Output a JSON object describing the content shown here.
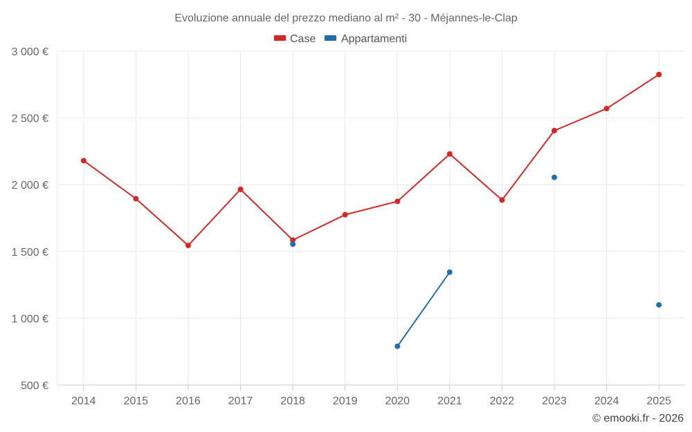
{
  "chart_data": {
    "type": "line",
    "title": "Evoluzione annuale del prezzo mediano al m² - 30 - Méjannes-le-Clap",
    "categories": [
      "2014",
      "2015",
      "2016",
      "2017",
      "2018",
      "2019",
      "2020",
      "2021",
      "2022",
      "2023",
      "2024",
      "2025"
    ],
    "ylim": [
      500,
      3000
    ],
    "yticks": [
      500,
      1000,
      1500,
      2000,
      2500,
      3000
    ],
    "ytick_labels": [
      "500 €",
      "1 000 €",
      "1 500 €",
      "2 000 €",
      "2 500 €",
      "3 000 €"
    ],
    "grid": true,
    "legend_position": "top-center",
    "series": [
      {
        "name": "Case",
        "color": "#d62728",
        "values": [
          2180,
          1895,
          1545,
          1965,
          1585,
          1775,
          1875,
          2230,
          1885,
          2405,
          2570,
          2825
        ]
      },
      {
        "name": "Appartamenti",
        "color": "#1f6fa8",
        "values": [
          null,
          null,
          null,
          null,
          1555,
          null,
          790,
          1345,
          null,
          2055,
          null,
          1100
        ]
      }
    ],
    "credit": "© emooki.fr - 2026"
  }
}
